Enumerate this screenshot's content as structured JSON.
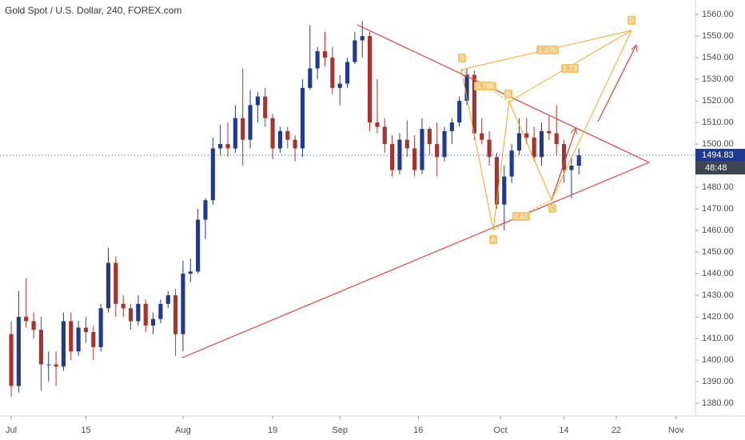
{
  "chart_data": {
    "type": "candlestick",
    "title": "Gold Spot / U.S. Dollar, 240, FOREX.com",
    "up_color": "#1f3a8f",
    "down_color": "#a8322d",
    "x": [
      0,
      1,
      2,
      3,
      4,
      5,
      6,
      7,
      8,
      9,
      10,
      11,
      12,
      13,
      14,
      15,
      16,
      17,
      18,
      19,
      20,
      21,
      22,
      23,
      24,
      25,
      26,
      27,
      28,
      29,
      30,
      31,
      32,
      33,
      34,
      35,
      36,
      37,
      38,
      39,
      40,
      41,
      42,
      43,
      44,
      45,
      46,
      47,
      48,
      49,
      50,
      51,
      52,
      53,
      54,
      55,
      56,
      57,
      58,
      59,
      60,
      61,
      62,
      63,
      64,
      65,
      66,
      67,
      68,
      69,
      70,
      71,
      72,
      73,
      74,
      75,
      76
    ],
    "ohlc": [
      [
        1412,
        1418,
        1383,
        1388
      ],
      [
        1388,
        1432,
        1385,
        1420
      ],
      [
        1420,
        1438,
        1415,
        1418
      ],
      [
        1418,
        1422,
        1410,
        1414
      ],
      [
        1414,
        1420,
        1386,
        1398
      ],
      [
        1398,
        1404,
        1390,
        1398
      ],
      [
        1398,
        1404,
        1388,
        1397
      ],
      [
        1397,
        1422,
        1395,
        1418
      ],
      [
        1418,
        1422,
        1400,
        1404
      ],
      [
        1404,
        1418,
        1402,
        1415
      ],
      [
        1415,
        1420,
        1408,
        1413
      ],
      [
        1413,
        1416,
        1400,
        1406
      ],
      [
        1406,
        1426,
        1404,
        1424
      ],
      [
        1424,
        1452,
        1422,
        1445
      ],
      [
        1445,
        1448,
        1420,
        1426
      ],
      [
        1426,
        1430,
        1420,
        1424
      ],
      [
        1424,
        1426,
        1414,
        1418
      ],
      [
        1418,
        1430,
        1416,
        1426
      ],
      [
        1426,
        1428,
        1413,
        1416
      ],
      [
        1416,
        1422,
        1412,
        1419
      ],
      [
        1419,
        1428,
        1417,
        1426
      ],
      [
        1426,
        1432,
        1424,
        1430
      ],
      [
        1430,
        1433,
        1402,
        1412
      ],
      [
        1412,
        1446,
        1404,
        1440
      ],
      [
        1440,
        1447,
        1436,
        1441
      ],
      [
        1441,
        1470,
        1440,
        1465
      ],
      [
        1465,
        1475,
        1456,
        1474
      ],
      [
        1474,
        1503,
        1472,
        1498
      ],
      [
        1498,
        1509,
        1495,
        1500
      ],
      [
        1500,
        1510,
        1494,
        1498
      ],
      [
        1498,
        1518,
        1496,
        1512
      ],
      [
        1512,
        1535,
        1490,
        1502
      ],
      [
        1502,
        1525,
        1498,
        1518
      ],
      [
        1518,
        1524,
        1510,
        1522
      ],
      [
        1522,
        1526,
        1508,
        1512
      ],
      [
        1512,
        1514,
        1493,
        1498
      ],
      [
        1498,
        1508,
        1496,
        1506
      ],
      [
        1506,
        1508,
        1498,
        1502
      ],
      [
        1502,
        1504,
        1492,
        1498
      ],
      [
        1498,
        1530,
        1494,
        1526
      ],
      [
        1526,
        1555,
        1525,
        1535
      ],
      [
        1535,
        1545,
        1530,
        1543
      ],
      [
        1543,
        1552,
        1536,
        1540
      ],
      [
        1540,
        1545,
        1523,
        1526
      ],
      [
        1526,
        1532,
        1518,
        1528
      ],
      [
        1528,
        1540,
        1526,
        1538
      ],
      [
        1538,
        1552,
        1537,
        1548
      ],
      [
        1548,
        1557,
        1540,
        1550
      ],
      [
        1550,
        1552,
        1506,
        1510
      ],
      [
        1510,
        1530,
        1505,
        1508
      ],
      [
        1508,
        1512,
        1496,
        1500
      ],
      [
        1500,
        1504,
        1485,
        1488
      ],
      [
        1488,
        1505,
        1486,
        1502
      ],
      [
        1502,
        1511,
        1494,
        1498
      ],
      [
        1498,
        1504,
        1485,
        1488
      ],
      [
        1488,
        1512,
        1486,
        1507
      ],
      [
        1507,
        1508,
        1495,
        1500
      ],
      [
        1500,
        1510,
        1485,
        1494
      ],
      [
        1494,
        1508,
        1492,
        1506
      ],
      [
        1506,
        1512,
        1500,
        1510
      ],
      [
        1510,
        1522,
        1508,
        1520
      ],
      [
        1520,
        1535,
        1518,
        1532
      ],
      [
        1532,
        1534,
        1502,
        1505
      ],
      [
        1505,
        1512,
        1500,
        1502
      ],
      [
        1502,
        1506,
        1490,
        1494
      ],
      [
        1494,
        1496,
        1470,
        1472
      ],
      [
        1472,
        1490,
        1460,
        1485
      ],
      [
        1485,
        1500,
        1482,
        1497
      ],
      [
        1497,
        1512,
        1495,
        1505
      ],
      [
        1505,
        1512,
        1500,
        1503
      ],
      [
        1503,
        1508,
        1492,
        1494
      ],
      [
        1494,
        1510,
        1490,
        1506
      ],
      [
        1506,
        1513,
        1502,
        1505
      ],
      [
        1505,
        1518,
        1495,
        1500
      ],
      [
        1500,
        1502,
        1482,
        1488
      ],
      [
        1488,
        1494,
        1475,
        1490
      ],
      [
        1490,
        1498,
        1486,
        1494.83
      ]
    ],
    "xlim": [
      -1.5,
      91.6
    ],
    "xticks": [
      {
        "value": 0,
        "label": "Jul"
      },
      {
        "value": 10,
        "label": "15"
      },
      {
        "value": 23,
        "label": "Aug"
      },
      {
        "value": 35,
        "label": "19"
      },
      {
        "value": 44,
        "label": "Sep"
      },
      {
        "value": 54.5,
        "label": "16"
      },
      {
        "value": 65.5,
        "label": "Oct"
      },
      {
        "value": 74,
        "label": "14"
      },
      {
        "value": 81,
        "label": "22"
      },
      {
        "value": 89,
        "label": "Nov"
      }
    ],
    "ylim": [
      1374.1,
      1566.7
    ],
    "yticks": [
      {
        "value": 1380,
        "label": "1380.00"
      },
      {
        "value": 1390,
        "label": "1390.00"
      },
      {
        "value": 1400,
        "label": "1400.00"
      },
      {
        "value": 1410,
        "label": "1410.00"
      },
      {
        "value": 1420,
        "label": "1420.00"
      },
      {
        "value": 1430,
        "label": "1430.00"
      },
      {
        "value": 1440,
        "label": "1440.00"
      },
      {
        "value": 1450,
        "label": "1450.00"
      },
      {
        "value": 1460,
        "label": "1460.00"
      },
      {
        "value": 1470,
        "label": "1470.00"
      },
      {
        "value": 1480,
        "label": "1480.00"
      },
      {
        "value": 1500,
        "label": "1500.00"
      },
      {
        "value": 1510,
        "label": "1510.00"
      },
      {
        "value": 1520,
        "label": "1520.00"
      },
      {
        "value": 1530,
        "label": "1530.00"
      },
      {
        "value": 1540,
        "label": "1540.00"
      },
      {
        "value": 1550,
        "label": "1550.00"
      },
      {
        "value": 1560,
        "label": "1560.00"
      }
    ],
    "last_price": {
      "value": 1494.83,
      "label": "1494.83"
    },
    "countdown": "48:48",
    "annotations": {
      "points": [
        "X",
        "A",
        "B",
        "C",
        "D"
      ],
      "ratios": [
        "0.786",
        "1.276",
        "1.73",
        "0.81"
      ]
    }
  }
}
